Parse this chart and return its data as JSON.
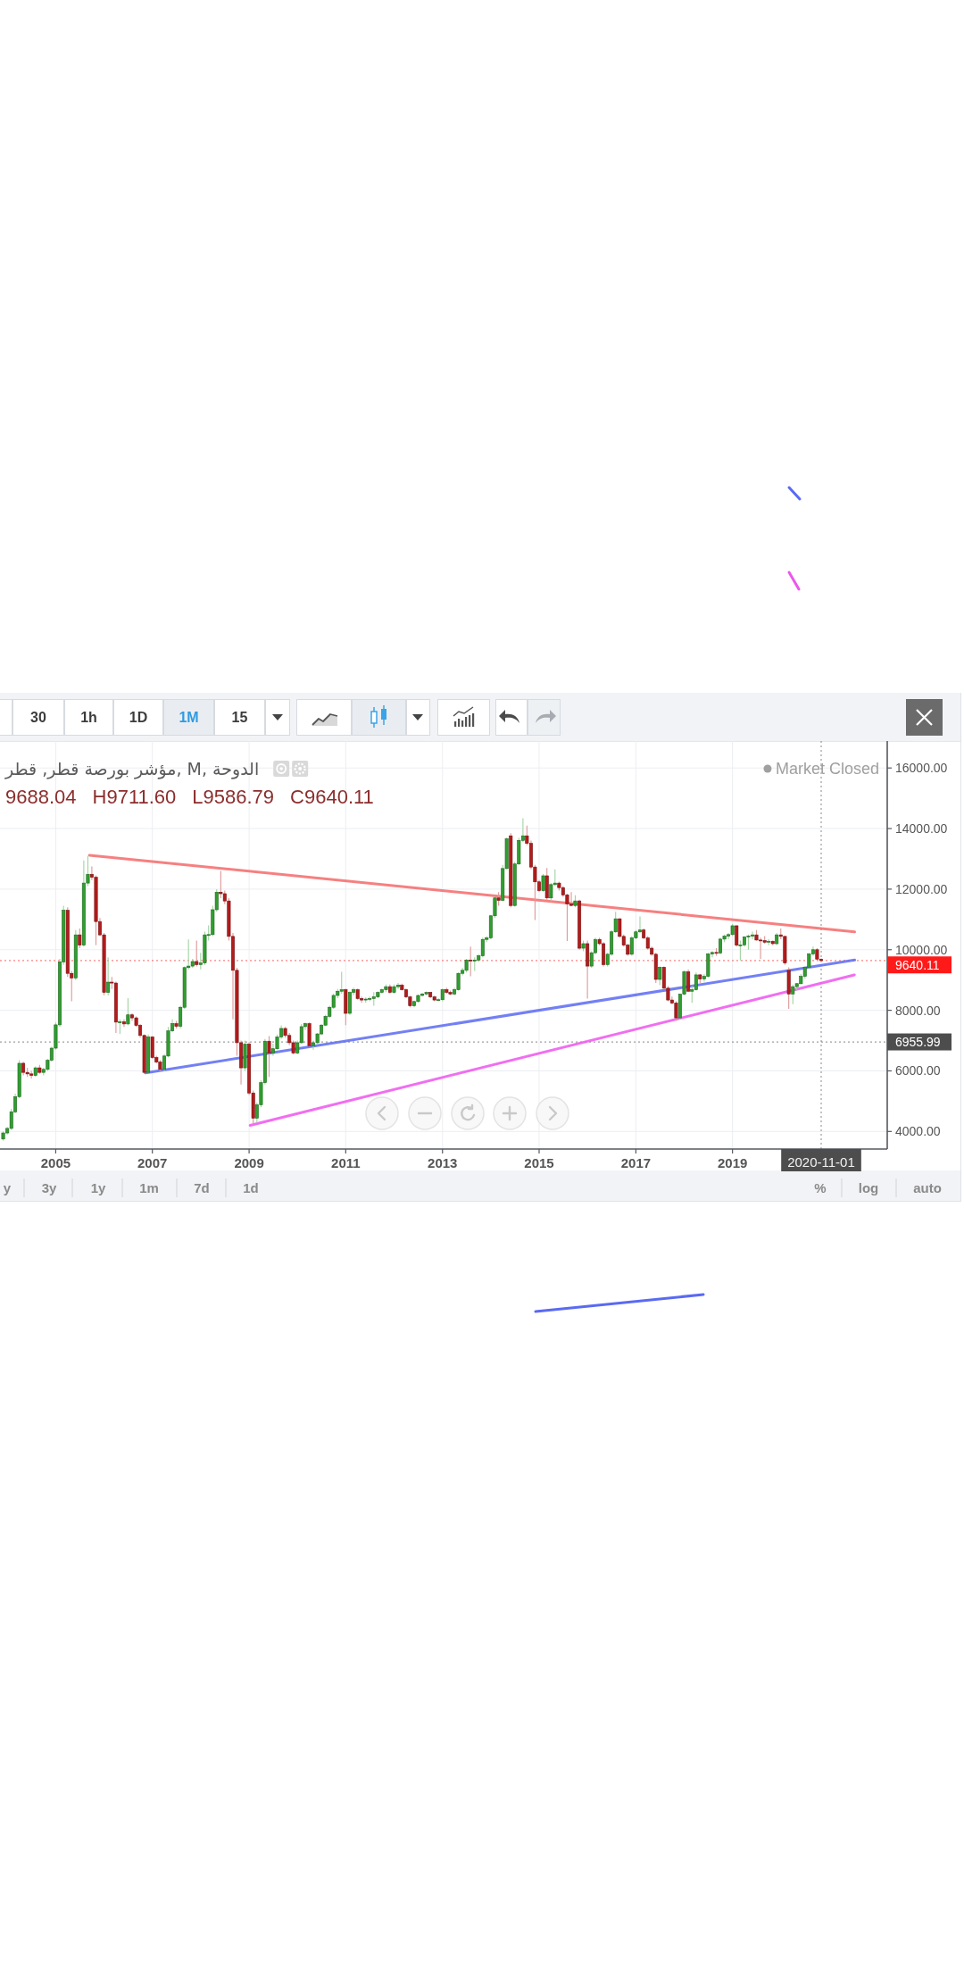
{
  "chart_data": {
    "type": "candlestick",
    "title": "مؤشر بورصة قطر, قطر, M, الدوحة",
    "x": [
      "2003-12",
      "2004-01",
      "2004-02",
      "2004-03",
      "2004-04",
      "2004-05",
      "2004-06",
      "2004-07",
      "2004-08",
      "2004-09",
      "2004-10",
      "2004-11",
      "2004-12",
      "2005-01",
      "2005-02",
      "2005-03",
      "2005-04",
      "2005-05",
      "2005-06",
      "2005-07",
      "2005-08",
      "2005-09",
      "2005-10",
      "2005-11",
      "2005-12",
      "2006-01",
      "2006-02",
      "2006-03",
      "2006-04",
      "2006-05",
      "2006-06",
      "2006-07",
      "2006-08",
      "2006-09",
      "2006-10",
      "2006-11",
      "2006-12",
      "2007-01",
      "2007-02",
      "2007-03",
      "2007-04",
      "2007-05",
      "2007-06",
      "2007-07",
      "2007-08",
      "2007-09",
      "2007-10",
      "2007-11",
      "2007-12",
      "2008-01",
      "2008-02",
      "2008-03",
      "2008-04",
      "2008-05",
      "2008-06",
      "2008-07",
      "2008-08",
      "2008-09",
      "2008-10",
      "2008-11",
      "2008-12",
      "2009-01",
      "2009-02",
      "2009-03",
      "2009-04",
      "2009-05",
      "2009-06",
      "2009-07",
      "2009-08",
      "2009-09",
      "2009-10",
      "2009-11",
      "2009-12",
      "2010-01",
      "2010-02",
      "2010-03",
      "2010-04",
      "2010-05",
      "2010-06",
      "2010-07",
      "2010-08",
      "2010-09",
      "2010-10",
      "2010-11",
      "2010-12",
      "2011-01",
      "2011-02",
      "2011-03",
      "2011-04",
      "2011-05",
      "2011-06",
      "2011-07",
      "2011-08",
      "2011-09",
      "2011-10",
      "2011-11",
      "2011-12",
      "2012-01",
      "2012-02",
      "2012-03",
      "2012-04",
      "2012-05",
      "2012-06",
      "2012-07",
      "2012-08",
      "2012-09",
      "2012-10",
      "2012-11",
      "2012-12",
      "2013-01",
      "2013-02",
      "2013-03",
      "2013-04",
      "2013-05",
      "2013-06",
      "2013-07",
      "2013-08",
      "2013-09",
      "2013-10",
      "2013-11",
      "2013-12",
      "2014-01",
      "2014-02",
      "2014-03",
      "2014-04",
      "2014-05",
      "2014-06",
      "2014-07",
      "2014-08",
      "2014-09",
      "2014-10",
      "2014-11",
      "2014-12",
      "2015-01",
      "2015-02",
      "2015-03",
      "2015-04",
      "2015-05",
      "2015-06",
      "2015-07",
      "2015-08",
      "2015-09",
      "2015-10",
      "2015-11",
      "2015-12",
      "2016-01",
      "2016-02",
      "2016-03",
      "2016-04",
      "2016-05",
      "2016-06",
      "2016-07",
      "2016-08",
      "2016-09",
      "2016-10",
      "2016-11",
      "2016-12",
      "2017-01",
      "2017-02",
      "2017-03",
      "2017-04",
      "2017-05",
      "2017-06",
      "2017-07",
      "2017-08",
      "2017-09",
      "2017-10",
      "2017-11",
      "2017-12",
      "2018-01",
      "2018-02",
      "2018-03",
      "2018-04",
      "2018-05",
      "2018-06",
      "2018-07",
      "2018-08",
      "2018-09",
      "2018-10",
      "2018-11",
      "2018-12",
      "2019-01",
      "2019-02",
      "2019-03",
      "2019-04",
      "2019-05",
      "2019-06",
      "2019-07",
      "2019-08",
      "2019-09",
      "2019-10",
      "2019-11",
      "2019-12",
      "2020-01",
      "2020-02",
      "2020-03",
      "2020-04",
      "2020-05",
      "2020-06",
      "2020-07",
      "2020-08",
      "2020-09",
      "2020-10",
      "2020-11"
    ],
    "ohlc": [
      [
        3750,
        4000,
        3700,
        3950
      ],
      [
        3950,
        4150,
        3900,
        4100
      ],
      [
        4100,
        4750,
        4050,
        4650
      ],
      [
        4650,
        5250,
        4600,
        5150
      ],
      [
        5150,
        6350,
        5100,
        6250
      ],
      [
        6250,
        6300,
        5850,
        5950
      ],
      [
        5950,
        6100,
        5800,
        5900
      ],
      [
        5900,
        6000,
        5750,
        5850
      ],
      [
        5850,
        6150,
        5800,
        6100
      ],
      [
        6100,
        6200,
        5900,
        5950
      ],
      [
        5950,
        6100,
        5850,
        6050
      ],
      [
        6050,
        6400,
        6000,
        6350
      ],
      [
        6350,
        6800,
        6300,
        6750
      ],
      [
        6750,
        7600,
        6700,
        7520
      ],
      [
        7520,
        9700,
        7450,
        9600
      ],
      [
        9600,
        11450,
        9500,
        11300
      ],
      [
        11300,
        11400,
        9100,
        9220
      ],
      [
        9220,
        9300,
        8300,
        9070
      ],
      [
        9070,
        10650,
        9000,
        10490
      ],
      [
        10490,
        10700,
        10050,
        10150
      ],
      [
        10150,
        12950,
        10100,
        12200
      ],
      [
        12200,
        13100,
        12100,
        12490
      ],
      [
        12490,
        12750,
        12300,
        12390
      ],
      [
        12390,
        12450,
        10150,
        10930
      ],
      [
        10930,
        11050,
        10450,
        10490
      ],
      [
        10490,
        10550,
        8500,
        8590
      ],
      [
        8590,
        9750,
        8500,
        8930
      ],
      [
        8930,
        9100,
        8700,
        8900
      ],
      [
        8900,
        8950,
        7250,
        7610
      ],
      [
        7610,
        7700,
        7220,
        7620
      ],
      [
        7620,
        7700,
        7450,
        7550
      ],
      [
        7550,
        8400,
        7500,
        7850
      ],
      [
        7850,
        7900,
        7650,
        7750
      ],
      [
        7750,
        7800,
        7450,
        7500
      ],
      [
        7500,
        7550,
        7100,
        7170
      ],
      [
        7170,
        7200,
        5900,
        5950
      ],
      [
        5950,
        7200,
        5930,
        7120
      ],
      [
        7120,
        7150,
        6400,
        6440
      ],
      [
        6440,
        6500,
        6250,
        6290
      ],
      [
        6290,
        6350,
        6000,
        6050
      ],
      [
        6050,
        6550,
        6000,
        6490
      ],
      [
        6490,
        7450,
        6450,
        7320
      ],
      [
        7320,
        7700,
        7280,
        7560
      ],
      [
        7560,
        7650,
        7400,
        7470
      ],
      [
        7470,
        8150,
        7400,
        8100
      ],
      [
        8100,
        9450,
        8050,
        9410
      ],
      [
        9410,
        10340,
        9350,
        9460
      ],
      [
        9460,
        9700,
        9400,
        9610
      ],
      [
        9610,
        10300,
        9450,
        9510
      ],
      [
        9510,
        9900,
        9350,
        9560
      ],
      [
        9560,
        10600,
        9500,
        10490
      ],
      [
        10490,
        10800,
        10300,
        10500
      ],
      [
        10500,
        11450,
        10450,
        11320
      ],
      [
        11320,
        12000,
        11250,
        11900
      ],
      [
        11900,
        12600,
        11700,
        11850
      ],
      [
        11850,
        11950,
        11500,
        11610
      ],
      [
        11610,
        11700,
        10300,
        10440
      ],
      [
        10440,
        10550,
        7700,
        9320
      ],
      [
        9320,
        9400,
        6500,
        6930
      ],
      [
        6930,
        7000,
        5550,
        6100
      ],
      [
        6100,
        7000,
        6000,
        6880
      ],
      [
        6880,
        6950,
        5200,
        5270
      ],
      [
        5270,
        5350,
        4250,
        4440
      ],
      [
        4440,
        4950,
        4290,
        4880
      ],
      [
        4880,
        5700,
        4800,
        5610
      ],
      [
        5610,
        7050,
        5550,
        6980
      ],
      [
        6980,
        7150,
        5800,
        6590
      ],
      [
        6590,
        6900,
        6500,
        6730
      ],
      [
        6730,
        7200,
        6700,
        7120
      ],
      [
        7120,
        7500,
        7050,
        7400
      ],
      [
        7400,
        7450,
        7100,
        7170
      ],
      [
        7170,
        7250,
        6850,
        6930
      ],
      [
        6930,
        7000,
        6550,
        6590
      ],
      [
        6590,
        7000,
        6550,
        6930
      ],
      [
        6930,
        7550,
        6900,
        7460
      ],
      [
        7460,
        7600,
        7350,
        7560
      ],
      [
        7560,
        7600,
        6800,
        6830
      ],
      [
        6830,
        7000,
        6700,
        6930
      ],
      [
        6930,
        7250,
        6880,
        7220
      ],
      [
        7220,
        7550,
        7180,
        7510
      ],
      [
        7510,
        7850,
        7480,
        7800
      ],
      [
        7800,
        8150,
        7750,
        8100
      ],
      [
        8100,
        8550,
        8050,
        8490
      ],
      [
        8490,
        8700,
        8400,
        8630
      ],
      [
        8630,
        9270,
        8550,
        8680
      ],
      [
        8680,
        8720,
        7510,
        7900
      ],
      [
        7900,
        8620,
        7850,
        8590
      ],
      [
        8590,
        8750,
        8500,
        8680
      ],
      [
        8680,
        8720,
        8350,
        8390
      ],
      [
        8390,
        8450,
        8250,
        8340
      ],
      [
        8340,
        8420,
        8250,
        8370
      ],
      [
        8370,
        8450,
        8300,
        8390
      ],
      [
        8390,
        8600,
        8150,
        8440
      ],
      [
        8440,
        8620,
        8400,
        8590
      ],
      [
        8590,
        8720,
        8550,
        8680
      ],
      [
        8680,
        8850,
        8600,
        8780
      ],
      [
        8780,
        8850,
        8550,
        8590
      ],
      [
        8590,
        8850,
        8550,
        8780
      ],
      [
        8780,
        8900,
        8700,
        8830
      ],
      [
        8830,
        8880,
        8650,
        8680
      ],
      [
        8680,
        8720,
        8400,
        8440
      ],
      [
        8440,
        8480,
        8100,
        8150
      ],
      [
        8150,
        8320,
        8100,
        8290
      ],
      [
        8290,
        8520,
        8250,
        8490
      ],
      [
        8490,
        8580,
        8450,
        8540
      ],
      [
        8540,
        8620,
        8500,
        8590
      ],
      [
        8590,
        8600,
        8400,
        8440
      ],
      [
        8440,
        8480,
        8300,
        8340
      ],
      [
        8340,
        8400,
        8300,
        8350
      ],
      [
        8350,
        8720,
        8300,
        8680
      ],
      [
        8680,
        8750,
        8550,
        8590
      ],
      [
        8590,
        8650,
        8500,
        8540
      ],
      [
        8540,
        8750,
        8500,
        8680
      ],
      [
        8680,
        9250,
        8650,
        9220
      ],
      [
        9220,
        9400,
        9150,
        9320
      ],
      [
        9320,
        9700,
        9250,
        9660
      ],
      [
        9660,
        10100,
        9120,
        9650
      ],
      [
        9650,
        9750,
        9300,
        9660
      ],
      [
        9660,
        9850,
        9600,
        9800
      ],
      [
        9800,
        10400,
        9750,
        10340
      ],
      [
        10340,
        10450,
        10250,
        10390
      ],
      [
        10390,
        11150,
        10350,
        11120
      ],
      [
        11120,
        11750,
        11050,
        11710
      ],
      [
        11710,
        11900,
        11450,
        11630
      ],
      [
        11630,
        12800,
        11600,
        12680
      ],
      [
        12680,
        13700,
        12650,
        13660
      ],
      [
        13760,
        13850,
        11400,
        11460
      ],
      [
        11460,
        12900,
        11420,
        12830
      ],
      [
        12830,
        13700,
        12800,
        13610
      ],
      [
        13610,
        14340,
        13550,
        13760
      ],
      [
        13760,
        14100,
        13450,
        13510
      ],
      [
        13510,
        13600,
        12650,
        12730
      ],
      [
        12730,
        12800,
        10980,
        12240
      ],
      [
        12240,
        12300,
        11900,
        11950
      ],
      [
        11950,
        12500,
        11900,
        12440
      ],
      [
        12440,
        12700,
        11650,
        11710
      ],
      [
        11710,
        12200,
        11600,
        12150
      ],
      [
        12150,
        12650,
        12100,
        12200
      ],
      [
        12200,
        12250,
        11950,
        12050
      ],
      [
        12050,
        12100,
        11750,
        11810
      ],
      [
        11810,
        11850,
        10290,
        11510
      ],
      [
        11510,
        11900,
        11450,
        11460
      ],
      [
        11460,
        11800,
        11400,
        11610
      ],
      [
        11610,
        11650,
        10000,
        10050
      ],
      [
        10050,
        10300,
        9950,
        10200
      ],
      [
        10200,
        10300,
        8390,
        9460
      ],
      [
        9460,
        9950,
        9400,
        9900
      ],
      [
        9900,
        10400,
        9850,
        10340
      ],
      [
        10340,
        10400,
        10150,
        10200
      ],
      [
        10200,
        10250,
        9450,
        9510
      ],
      [
        9510,
        9900,
        9450,
        9850
      ],
      [
        9850,
        10650,
        9800,
        10590
      ],
      [
        10590,
        11250,
        10550,
        11020
      ],
      [
        11020,
        11050,
        10400,
        10440
      ],
      [
        10440,
        10500,
        10100,
        10150
      ],
      [
        10150,
        10200,
        9800,
        9850
      ],
      [
        9850,
        10450,
        9800,
        10390
      ],
      [
        10390,
        10650,
        10350,
        10590
      ],
      [
        10590,
        11100,
        10550,
        10650
      ],
      [
        10650,
        10700,
        10350,
        10390
      ],
      [
        10390,
        10450,
        10000,
        10050
      ],
      [
        10050,
        10100,
        9800,
        9850
      ],
      [
        9850,
        9900,
        8900,
        9020
      ],
      [
        9020,
        9450,
        8830,
        9420
      ],
      [
        9420,
        9450,
        8700,
        8730
      ],
      [
        8730,
        8800,
        8300,
        8340
      ],
      [
        8340,
        8450,
        8200,
        8240
      ],
      [
        8240,
        8300,
        7650,
        7750
      ],
      [
        7750,
        8550,
        7700,
        8530
      ],
      [
        8530,
        9320,
        8500,
        9270
      ],
      [
        9270,
        9350,
        8600,
        8630
      ],
      [
        8630,
        8800,
        8250,
        8680
      ],
      [
        8680,
        9250,
        8650,
        9170
      ],
      [
        9170,
        9200,
        8900,
        9030
      ],
      [
        9030,
        9200,
        8950,
        9120
      ],
      [
        9120,
        9900,
        9080,
        9860
      ],
      [
        9860,
        9950,
        9750,
        9910
      ],
      [
        9910,
        10050,
        9800,
        9890
      ],
      [
        9890,
        10400,
        9850,
        10350
      ],
      [
        10350,
        10500,
        10250,
        10450
      ],
      [
        10450,
        10550,
        10350,
        10500
      ],
      [
        10500,
        10850,
        10450,
        10790
      ],
      [
        10790,
        10800,
        10100,
        10150
      ],
      [
        10150,
        10300,
        9650,
        10160
      ],
      [
        10160,
        10450,
        10100,
        10420
      ],
      [
        10420,
        10500,
        10000,
        10450
      ],
      [
        10450,
        10600,
        10350,
        10490
      ],
      [
        10490,
        10650,
        10300,
        10320
      ],
      [
        10320,
        10400,
        9700,
        10300
      ],
      [
        10300,
        10450,
        10200,
        10250
      ],
      [
        10250,
        10350,
        10150,
        10280
      ],
      [
        10280,
        10300,
        10150,
        10200
      ],
      [
        10200,
        10550,
        10150,
        10490
      ],
      [
        10490,
        10700,
        10350,
        10440
      ],
      [
        10440,
        10450,
        9500,
        9560
      ],
      [
        9320,
        9420,
        8050,
        8540
      ],
      [
        8540,
        8850,
        8200,
        8780
      ],
      [
        8780,
        8900,
        8650,
        8880
      ],
      [
        8880,
        9200,
        8850,
        9120
      ],
      [
        9120,
        9450,
        9050,
        9420
      ],
      [
        9420,
        9900,
        9380,
        9860
      ],
      [
        9860,
        10100,
        9800,
        10000
      ],
      [
        10000,
        10050,
        9650,
        9690
      ],
      [
        9688.04,
        9711.6,
        9586.79,
        9640.11
      ]
    ],
    "colors": [
      "#2f9e2f",
      "#2f9e2f",
      "#2f9e2f",
      "#2f9e2f",
      "#2f9e2f",
      "#b31b1b",
      "#b31b1b",
      "#b31b1b",
      "#2f9e2f",
      "#b31b1b",
      "#2f9e2f",
      "#2f9e2f",
      "#2f9e2f",
      "#2f9e2f",
      "#2f9e2f",
      "#2f9e2f",
      "#b31b1b",
      "#b31b1b",
      "#2f9e2f",
      "#b31b1b",
      "#2f9e2f",
      "#2f9e2f",
      "#b31b1b",
      "#b31b1b",
      "#b31b1b",
      "#b31b1b",
      "#2f9e2f",
      "#b31b1b",
      "#b31b1b",
      "#2f9e2f",
      "#b31b1b",
      "#2f9e2f",
      "#b31b1b",
      "#b31b1b",
      "#b31b1b",
      "#b31b1b",
      "#2f9e2f",
      "#b31b1b",
      "#b31b1b",
      "#b31b1b",
      "#2f9e2f",
      "#2f9e2f",
      "#2f9e2f",
      "#b31b1b",
      "#2f9e2f",
      "#2f9e2f",
      "#2f9e2f",
      "#2f9e2f",
      "#b31b1b",
      "#2f9e2f",
      "#2f9e2f",
      "#2f9e2f",
      "#2f9e2f",
      "#2f9e2f",
      "#b31b1b",
      "#b31b1b",
      "#b31b1b",
      "#b31b1b",
      "#b31b1b",
      "#b31b1b",
      "#2f9e2f",
      "#b31b1b",
      "#b31b1b",
      "#2f9e2f",
      "#2f9e2f",
      "#2f9e2f",
      "#b31b1b",
      "#2f9e2f",
      "#2f9e2f",
      "#2f9e2f",
      "#b31b1b",
      "#b31b1b",
      "#b31b1b",
      "#2f9e2f",
      "#2f9e2f",
      "#2f9e2f",
      "#b31b1b",
      "#2f9e2f",
      "#2f9e2f",
      "#2f9e2f",
      "#2f9e2f",
      "#2f9e2f",
      "#2f9e2f",
      "#2f9e2f",
      "#2f9e2f",
      "#b31b1b",
      "#2f9e2f",
      "#2f9e2f",
      "#b31b1b",
      "#b31b1b",
      "#2f9e2f",
      "#2f9e2f",
      "#2f9e2f",
      "#2f9e2f",
      "#2f9e2f",
      "#2f9e2f",
      "#b31b1b",
      "#2f9e2f",
      "#2f9e2f",
      "#b31b1b",
      "#b31b1b",
      "#b31b1b",
      "#2f9e2f",
      "#2f9e2f",
      "#2f9e2f",
      "#2f9e2f",
      "#b31b1b",
      "#b31b1b",
      "#2f9e2f",
      "#2f9e2f",
      "#b31b1b",
      "#b31b1b",
      "#2f9e2f",
      "#2f9e2f",
      "#2f9e2f",
      "#2f9e2f",
      "#b31b1b",
      "#2f9e2f",
      "#2f9e2f",
      "#2f9e2f",
      "#2f9e2f",
      "#2f9e2f",
      "#2f9e2f",
      "#b31b1b",
      "#2f9e2f",
      "#2f9e2f",
      "#b31b1b",
      "#2f9e2f",
      "#2f9e2f",
      "#2f9e2f",
      "#b31b1b",
      "#b31b1b",
      "#b31b1b",
      "#b31b1b",
      "#2f9e2f",
      "#b31b1b",
      "#2f9e2f",
      "#2f9e2f",
      "#b31b1b",
      "#b31b1b",
      "#b31b1b",
      "#b31b1b",
      "#2f9e2f",
      "#b31b1b",
      "#2f9e2f",
      "#b31b1b",
      "#2f9e2f",
      "#2f9e2f",
      "#b31b1b",
      "#b31b1b",
      "#2f9e2f",
      "#2f9e2f",
      "#2f9e2f",
      "#b31b1b",
      "#b31b1b",
      "#b31b1b",
      "#2f9e2f",
      "#2f9e2f",
      "#2f9e2f",
      "#b31b1b",
      "#b31b1b",
      "#b31b1b",
      "#b31b1b",
      "#2f9e2f",
      "#b31b1b",
      "#b31b1b",
      "#b31b1b",
      "#b31b1b",
      "#2f9e2f",
      "#2f9e2f",
      "#b31b1b",
      "#2f9e2f",
      "#2f9e2f",
      "#b31b1b",
      "#2f9e2f",
      "#2f9e2f",
      "#2f9e2f",
      "#b31b1b",
      "#2f9e2f",
      "#2f9e2f",
      "#2f9e2f",
      "#2f9e2f",
      "#b31b1b",
      "#2f9e2f",
      "#2f9e2f",
      "#2f9e2f",
      "#2f9e2f",
      "#b31b1b",
      "#b31b1b",
      "#b31b1b",
      "#2f9e2f",
      "#b31b1b",
      "#2f9e2f",
      "#b31b1b",
      "#b31b1b",
      "#b31b1b",
      "#2f9e2f",
      "#2f9e2f",
      "#2f9e2f",
      "#2f9e2f",
      "#2f9e2f",
      "#2f9e2f",
      "#b31b1b",
      "#b31b1b"
    ],
    "series": [
      {
        "type": "line",
        "x": [
          "2005-09-13",
          "2021-07-12"
        ],
        "values": [
          13120,
          10590
        ],
        "color": "#f46a6a"
      },
      {
        "type": "line",
        "x": [
          "2006-11-10",
          "2021-07-12"
        ],
        "values": [
          5930,
          9660
        ],
        "color": "#5a6af2"
      },
      {
        "type": "line",
        "x": [
          "2009-01-09",
          "2021-07-10"
        ],
        "values": [
          4200,
          9170
        ],
        "color": "#ee55ee"
      }
    ],
    "xlim": [
      "2003-11-07",
      "2022-03-15"
    ],
    "ylim": [
      3420,
      16890
    ],
    "xticks": [
      {
        "value": "2005-01",
        "label": "2005"
      },
      {
        "value": "2007-01",
        "label": "2007"
      },
      {
        "value": "2009-01",
        "label": "2009"
      },
      {
        "value": "2011-01",
        "label": "2011"
      },
      {
        "value": "2013-01",
        "label": "2013"
      },
      {
        "value": "2015-01",
        "label": "2015"
      },
      {
        "value": "2017-01",
        "label": "2017"
      },
      {
        "value": "2019-01",
        "label": "2019"
      }
    ],
    "yticks": [
      {
        "value": 4000,
        "label": "4000.00"
      },
      {
        "value": 6000,
        "label": "6000.00"
      },
      {
        "value": 8000,
        "label": "8000.00"
      },
      {
        "value": 10000,
        "label": "10000.00"
      },
      {
        "value": 12000,
        "label": "12000.00"
      },
      {
        "value": 14000,
        "label": "14000.00"
      },
      {
        "value": 16000,
        "label": "16000.00"
      }
    ],
    "grid": true,
    "ref_lines": [
      {
        "axis": "y",
        "value": 9640.11,
        "label": "9640.11",
        "color": "#ff1a1a",
        "line_style": "dotted"
      },
      {
        "axis": "y",
        "value": 6955.99,
        "label": "6955.99",
        "color": "#4d4d4d",
        "line_style": "dotted"
      },
      {
        "axis": "x",
        "value": "2020-11-01",
        "label": "2020-11-01",
        "color": "#4d4d4d",
        "line_style": "dotted"
      }
    ],
    "annotations": [
      "30",
      "1h",
      "1D",
      "1M",
      "15",
      "9688.04",
      "H9711.60",
      "L9586.79",
      "C9640.11",
      "Market Closed",
      "y",
      "3y",
      "1y",
      "1m",
      "7d",
      "1d",
      "%",
      "log",
      "auto"
    ]
  }
}
